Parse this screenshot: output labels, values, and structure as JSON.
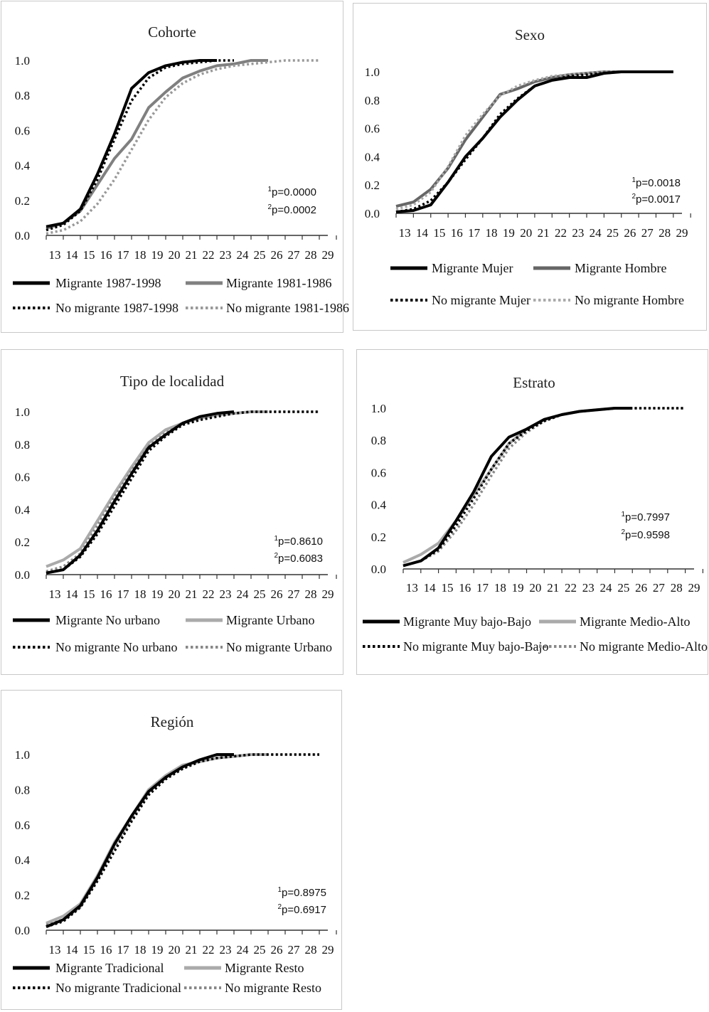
{
  "chart_data": [
    {
      "type": "line",
      "title": "Cohorte",
      "x": [
        13,
        14,
        15,
        16,
        17,
        18,
        19,
        20,
        21,
        22,
        23,
        24,
        25,
        26,
        27,
        28,
        29
      ],
      "ylim": [
        0,
        1.0
      ],
      "yticks": [
        "0.0",
        "0.2",
        "0.4",
        "0.6",
        "0.8",
        "1.0"
      ],
      "pvalues": [
        {
          "sup": "1",
          "text": "p=0.0000"
        },
        {
          "sup": "2",
          "text": "p=0.0002"
        }
      ],
      "series": [
        {
          "name": "Migrante 1987-1998",
          "color": "#000000",
          "dash": "solid",
          "values": [
            0.05,
            0.07,
            0.15,
            0.35,
            0.58,
            0.84,
            0.93,
            0.97,
            0.99,
            1.0,
            1.0,
            null,
            null,
            null,
            null,
            null,
            null
          ]
        },
        {
          "name": "Migrante 1981-1986",
          "color": "#808080",
          "dash": "solid",
          "values": [
            0.04,
            0.07,
            0.14,
            0.29,
            0.44,
            0.55,
            0.73,
            0.82,
            0.9,
            0.94,
            0.97,
            0.98,
            1.0,
            1.0,
            null,
            null,
            null
          ]
        },
        {
          "name": "No migrante 1987-1998",
          "color": "#000000",
          "dash": "dot",
          "values": [
            0.03,
            0.06,
            0.14,
            0.32,
            0.55,
            0.77,
            0.9,
            0.96,
            0.98,
            0.99,
            1.0,
            1.0,
            null,
            null,
            null,
            null,
            null
          ]
        },
        {
          "name": "No migrante 1981-1986",
          "color": "#999999",
          "dash": "dot",
          "values": [
            0.01,
            0.03,
            0.08,
            0.18,
            0.32,
            0.49,
            0.66,
            0.79,
            0.87,
            0.92,
            0.95,
            0.97,
            0.98,
            0.99,
            1.0,
            1.0,
            1.0
          ]
        }
      ]
    },
    {
      "type": "line",
      "title": "Sexo",
      "x": [
        13,
        14,
        15,
        16,
        17,
        18,
        19,
        20,
        21,
        22,
        23,
        24,
        25,
        26,
        27,
        28,
        29
      ],
      "ylim": [
        0,
        1.0
      ],
      "yticks": [
        "0.0",
        "0.2",
        "0.4",
        "0.6",
        "0.8",
        "1.0"
      ],
      "pvalues": [
        {
          "sup": "1",
          "text": "p=0.0018"
        },
        {
          "sup": "2",
          "text": "p=0.0017"
        }
      ],
      "series": [
        {
          "name": "Migrante Mujer",
          "color": "#000000",
          "dash": "solid",
          "values": [
            0.01,
            0.02,
            0.06,
            0.22,
            0.4,
            0.53,
            0.68,
            0.8,
            0.9,
            0.94,
            0.96,
            0.96,
            0.99,
            1.0,
            1.0,
            1.0,
            1.0
          ]
        },
        {
          "name": "Migrante Hombre",
          "color": "#666666",
          "dash": "solid",
          "values": [
            0.05,
            0.08,
            0.17,
            0.32,
            0.52,
            0.68,
            0.84,
            0.88,
            0.93,
            0.96,
            0.98,
            0.99,
            1.0,
            1.0,
            1.0,
            1.0,
            1.0
          ]
        },
        {
          "name": "No migrante Mujer",
          "color": "#000000",
          "dash": "dot",
          "values": [
            0.01,
            0.03,
            0.09,
            0.22,
            0.38,
            0.53,
            0.7,
            0.81,
            0.9,
            0.94,
            0.97,
            0.98,
            0.99,
            1.0,
            1.0,
            1.0,
            1.0
          ]
        },
        {
          "name": "No migrante Hombre",
          "color": "#aaaaaa",
          "dash": "dot",
          "values": [
            0.03,
            0.06,
            0.15,
            0.33,
            0.55,
            0.7,
            0.83,
            0.9,
            0.94,
            0.97,
            0.98,
            0.99,
            1.0,
            1.0,
            1.0,
            1.0,
            1.0
          ]
        }
      ]
    },
    {
      "type": "line",
      "title": "Tipo de localidad",
      "x": [
        13,
        14,
        15,
        16,
        17,
        18,
        19,
        20,
        21,
        22,
        23,
        24,
        25,
        26,
        27,
        28,
        29
      ],
      "ylim": [
        0,
        1.0
      ],
      "yticks": [
        "0.0",
        "0.2",
        "0.4",
        "0.6",
        "0.8",
        "1.0"
      ],
      "pvalues": [
        {
          "sup": "1",
          "text": "p=0.8610"
        },
        {
          "sup": "2",
          "text": "p=0.6083"
        }
      ],
      "series": [
        {
          "name": "Migrante No urbano",
          "color": "#000000",
          "dash": "solid",
          "values": [
            0.01,
            0.03,
            0.12,
            0.27,
            0.45,
            0.62,
            0.78,
            0.86,
            0.93,
            0.97,
            0.99,
            1.0,
            null,
            null,
            null,
            null,
            null
          ]
        },
        {
          "name": "Migrante Urbano",
          "color": "#aaaaaa",
          "dash": "solid",
          "values": [
            0.05,
            0.09,
            0.16,
            0.33,
            0.5,
            0.66,
            0.81,
            0.89,
            0.93,
            0.96,
            0.98,
            0.99,
            1.0,
            1.0,
            null,
            null,
            null
          ]
        },
        {
          "name": "No migrante No urbano",
          "color": "#000000",
          "dash": "dot",
          "values": [
            0.01,
            0.03,
            0.11,
            0.25,
            0.42,
            0.59,
            0.76,
            0.85,
            0.92,
            0.95,
            0.97,
            0.99,
            1.0,
            1.0,
            1.0,
            1.0,
            1.0
          ]
        },
        {
          "name": "No migrante Urbano",
          "color": "#888888",
          "dash": "dot",
          "values": [
            0.02,
            0.05,
            0.13,
            0.3,
            0.48,
            0.64,
            0.79,
            0.87,
            0.93,
            0.96,
            0.98,
            0.99,
            1.0,
            1.0,
            1.0,
            1.0,
            1.0
          ]
        }
      ]
    },
    {
      "type": "line",
      "title": "Estrato",
      "x": [
        13,
        14,
        15,
        16,
        17,
        18,
        19,
        20,
        21,
        22,
        23,
        24,
        25,
        26,
        27,
        28,
        29
      ],
      "ylim": [
        0,
        1.0
      ],
      "yticks": [
        "0.0",
        "0.2",
        "0.4",
        "0.6",
        "0.8",
        "1.0"
      ],
      "pvalues": [
        {
          "sup": "1",
          "text": "p=0.7997"
        },
        {
          "sup": "2",
          "text": "p=0.9598"
        }
      ],
      "series": [
        {
          "name": "Migrante Muy bajo-Bajo",
          "color": "#000000",
          "dash": "solid",
          "values": [
            0.02,
            0.05,
            0.13,
            0.3,
            0.48,
            0.7,
            0.82,
            0.87,
            0.93,
            0.96,
            0.98,
            0.99,
            1.0,
            1.0,
            null,
            null,
            null
          ]
        },
        {
          "name": "Migrante Medio-Alto",
          "color": "#aaaaaa",
          "dash": "solid",
          "values": [
            0.04,
            0.09,
            0.16,
            0.3,
            0.46,
            0.62,
            0.78,
            0.87,
            0.93,
            0.96,
            0.98,
            0.99,
            1.0,
            1.0,
            null,
            null,
            null
          ]
        },
        {
          "name": "No migrante Muy bajo-Bajo",
          "color": "#000000",
          "dash": "dot",
          "values": [
            0.02,
            0.05,
            0.12,
            0.27,
            0.44,
            0.62,
            0.78,
            0.86,
            0.92,
            0.96,
            0.98,
            0.99,
            1.0,
            1.0,
            1.0,
            1.0,
            1.0
          ]
        },
        {
          "name": "No migrante Medio-Alto",
          "color": "#888888",
          "dash": "dot",
          "values": [
            0.02,
            0.05,
            0.11,
            0.24,
            0.4,
            0.58,
            0.75,
            0.85,
            0.92,
            0.96,
            0.98,
            0.99,
            1.0,
            1.0,
            1.0,
            1.0,
            1.0
          ]
        }
      ]
    },
    {
      "type": "line",
      "title": "Región",
      "x": [
        13,
        14,
        15,
        16,
        17,
        18,
        19,
        20,
        21,
        22,
        23,
        24,
        25,
        26,
        27,
        28,
        29
      ],
      "ylim": [
        0,
        1.0
      ],
      "yticks": [
        "0.0",
        "0.2",
        "0.4",
        "0.6",
        "0.8",
        "1.0"
      ],
      "pvalues": [
        {
          "sup": "1",
          "text": "p=0.8975"
        },
        {
          "sup": "2",
          "text": "p=0.6917"
        }
      ],
      "series": [
        {
          "name": "Migrante Tradicional",
          "color": "#000000",
          "dash": "solid",
          "values": [
            0.02,
            0.06,
            0.14,
            0.3,
            0.49,
            0.65,
            0.79,
            0.87,
            0.93,
            0.97,
            1.0,
            1.0,
            null,
            null,
            null,
            null,
            null
          ]
        },
        {
          "name": "Migrante Resto",
          "color": "#aaaaaa",
          "dash": "solid",
          "values": [
            0.04,
            0.08,
            0.15,
            0.31,
            0.5,
            0.65,
            0.8,
            0.88,
            0.94,
            0.96,
            0.98,
            0.99,
            1.0,
            1.0,
            null,
            null,
            null
          ]
        },
        {
          "name": "No migrante Tradicional",
          "color": "#000000",
          "dash": "dot",
          "values": [
            0.02,
            0.05,
            0.13,
            0.28,
            0.45,
            0.62,
            0.77,
            0.86,
            0.92,
            0.96,
            0.98,
            0.99,
            1.0,
            1.0,
            1.0,
            1.0,
            1.0
          ]
        },
        {
          "name": "No migrante Resto",
          "color": "#888888",
          "dash": "dot",
          "values": [
            0.03,
            0.06,
            0.13,
            0.29,
            0.47,
            0.63,
            0.78,
            0.87,
            0.92,
            0.96,
            0.98,
            0.99,
            1.0,
            1.0,
            1.0,
            1.0,
            1.0
          ]
        }
      ]
    }
  ]
}
